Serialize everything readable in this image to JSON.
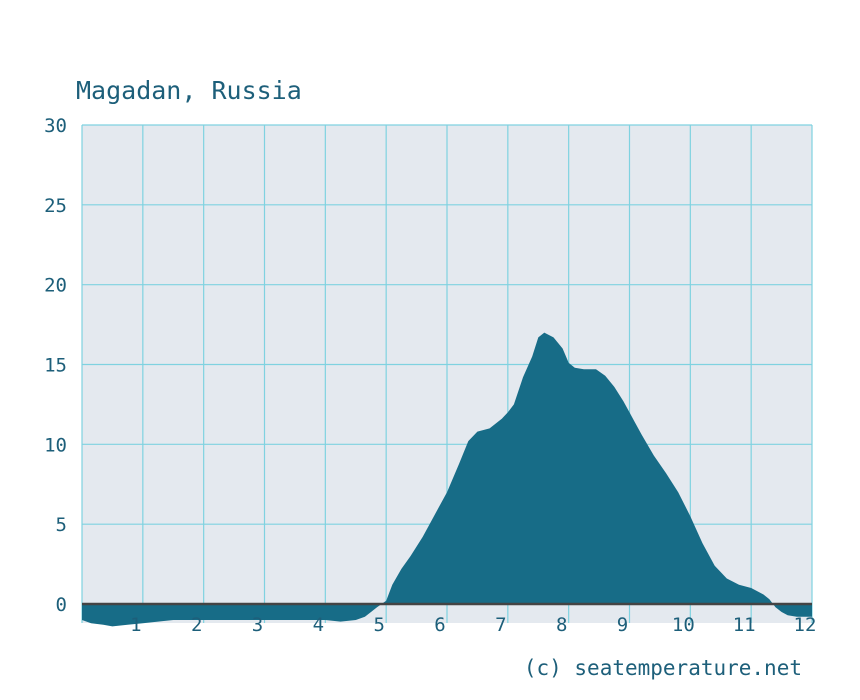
{
  "chart_data": {
    "type": "area",
    "title": "Magadan, Russia",
    "credit": "(c) seatemperature.net",
    "xlabel": "",
    "ylabel": "",
    "xlim": [
      0,
      12
    ],
    "ylim": [
      -1.2,
      30
    ],
    "x_ticks": [
      "1",
      "2",
      "3",
      "4",
      "5",
      "6",
      "7",
      "8",
      "9",
      "10",
      "11",
      "12"
    ],
    "y_ticks": [
      "0",
      "5",
      "10",
      "15",
      "20",
      "25",
      "30"
    ],
    "grid": true,
    "colors": {
      "fill": "#176c87",
      "plot_bg": "#e4e9ef",
      "grid": "#7fd2e0",
      "text": "#1d5f7a",
      "zero_line": "#444444"
    },
    "series": [
      {
        "x": [
          0,
          0.15,
          0.35,
          0.5,
          0.75,
          1.0,
          1.25,
          1.5,
          2.0,
          2.5,
          3.0,
          3.5,
          4.0,
          4.25,
          4.5,
          4.65,
          4.75,
          4.85,
          5.0,
          5.1,
          5.25,
          5.4,
          5.6,
          5.8,
          6.0,
          6.2,
          6.35,
          6.5,
          6.7,
          6.9,
          7.0,
          7.1,
          7.25,
          7.4,
          7.5,
          7.6,
          7.75,
          7.9,
          8.0,
          8.1,
          8.25,
          8.45,
          8.6,
          8.75,
          8.9,
          9.0,
          9.2,
          9.4,
          9.6,
          9.8,
          10.0,
          10.2,
          10.4,
          10.6,
          10.8,
          11.0,
          11.2,
          11.3,
          11.4,
          11.5,
          11.6,
          11.75,
          11.9,
          12.0
        ],
        "values": [
          -1.0,
          -1.2,
          -1.3,
          -1.4,
          -1.3,
          -1.2,
          -1.1,
          -1.0,
          -1.0,
          -1.0,
          -1.0,
          -1.0,
          -1.0,
          -1.1,
          -1.0,
          -0.8,
          -0.5,
          -0.2,
          0.2,
          1.2,
          2.2,
          3.0,
          4.2,
          5.6,
          7.0,
          8.8,
          10.2,
          10.8,
          11.0,
          11.6,
          12.0,
          12.5,
          14.2,
          15.5,
          16.7,
          17.0,
          16.7,
          16.0,
          15.1,
          14.8,
          14.7,
          14.7,
          14.3,
          13.6,
          12.7,
          12.0,
          10.6,
          9.3,
          8.2,
          7.0,
          5.5,
          3.8,
          2.4,
          1.6,
          1.2,
          1.0,
          0.6,
          0.3,
          -0.2,
          -0.5,
          -0.7,
          -0.8,
          -0.8,
          -0.8
        ]
      }
    ]
  }
}
